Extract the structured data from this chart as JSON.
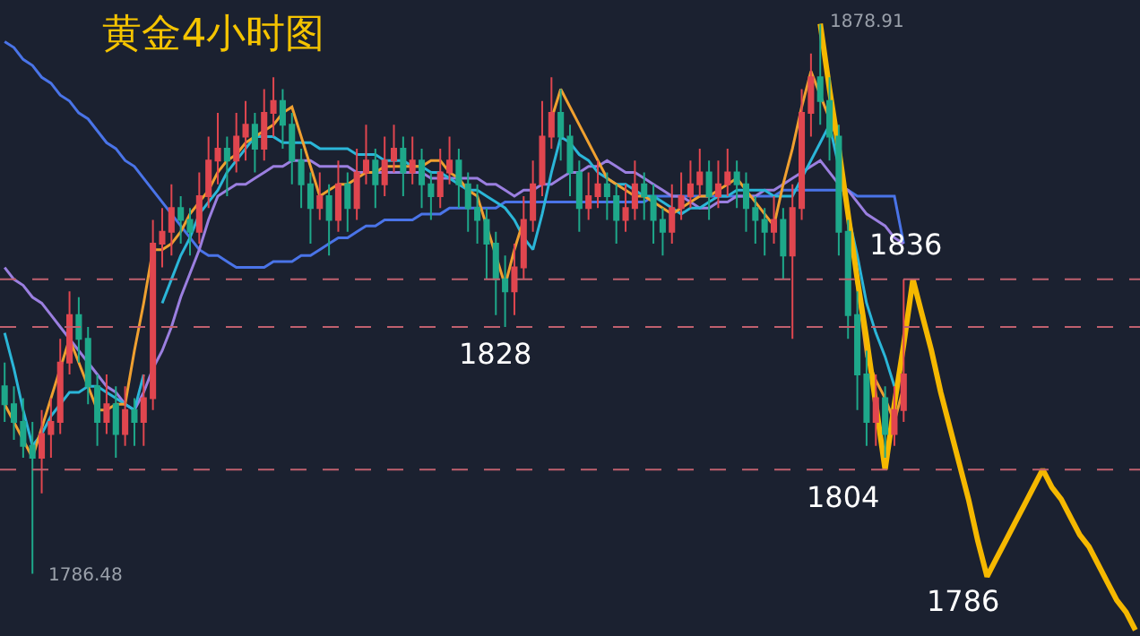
{
  "chart_data": {
    "type": "candlestick",
    "title": "黄金4小时图",
    "categories": [
      null,
      null,
      null,
      null,
      null,
      null,
      null,
      null,
      null,
      null,
      null,
      null,
      null,
      null,
      null,
      null,
      null,
      null,
      null,
      null,
      null,
      null,
      null,
      null,
      null,
      null,
      null,
      null,
      null,
      null,
      null,
      null,
      null,
      null,
      null,
      null,
      null,
      null,
      null,
      null,
      null,
      null,
      null,
      null,
      null,
      null,
      null,
      null,
      null,
      null,
      null,
      null,
      null,
      null,
      null,
      null,
      null,
      null,
      null,
      null,
      null,
      null,
      null,
      null,
      null,
      null,
      null,
      null,
      null,
      null,
      null,
      null,
      null,
      null,
      null,
      null,
      null,
      null,
      null,
      null,
      null,
      null,
      null,
      null,
      null,
      null,
      null,
      null,
      null,
      null,
      null,
      null,
      null,
      null,
      null,
      null,
      null,
      null,
      null,
      null,
      null,
      null,
      null,
      null,
      null,
      null,
      null,
      null,
      null,
      null,
      null,
      null,
      null,
      null,
      null,
      null,
      null,
      null,
      null,
      null,
      null,
      null,
      null
    ],
    "ohlc": [
      [
        1818,
        1822,
        1812,
        1815
      ],
      [
        1815,
        1818,
        1809,
        1812
      ],
      [
        1812,
        1816,
        1806,
        1808
      ],
      [
        1808,
        1812,
        1786.48,
        1806
      ],
      [
        1806,
        1814,
        1800,
        1810
      ],
      [
        1810,
        1816,
        1806,
        1812
      ],
      [
        1812,
        1826,
        1810,
        1822
      ],
      [
        1822,
        1834,
        1820,
        1830
      ],
      [
        1830,
        1833,
        1822,
        1826
      ],
      [
        1826,
        1828,
        1815,
        1818
      ],
      [
        1818,
        1820,
        1808,
        1812
      ],
      [
        1812,
        1820,
        1810,
        1815
      ],
      [
        1815,
        1818,
        1806,
        1810
      ],
      [
        1810,
        1818,
        1808,
        1814
      ],
      [
        1814,
        1816,
        1808,
        1812
      ],
      [
        1812,
        1820,
        1808,
        1816
      ],
      [
        1816,
        1846,
        1814,
        1842
      ],
      [
        1842,
        1848,
        1838,
        1844
      ],
      [
        1844,
        1852,
        1840,
        1848
      ],
      [
        1848,
        1850,
        1842,
        1846
      ],
      [
        1846,
        1848,
        1840,
        1844
      ],
      [
        1844,
        1854,
        1842,
        1850
      ],
      [
        1850,
        1860,
        1848,
        1856
      ],
      [
        1856,
        1864,
        1852,
        1858
      ],
      [
        1858,
        1860,
        1850,
        1856
      ],
      [
        1856,
        1864,
        1854,
        1860
      ],
      [
        1860,
        1866,
        1856,
        1862
      ],
      [
        1862,
        1864,
        1854,
        1858
      ],
      [
        1858,
        1868,
        1856,
        1864
      ],
      [
        1864,
        1870,
        1860,
        1866
      ],
      [
        1866,
        1868,
        1858,
        1862
      ],
      [
        1862,
        1864,
        1852,
        1856
      ],
      [
        1856,
        1858,
        1848,
        1852
      ],
      [
        1852,
        1854,
        1842,
        1848
      ],
      [
        1848,
        1854,
        1846,
        1850
      ],
      [
        1850,
        1852,
        1840,
        1846
      ],
      [
        1846,
        1856,
        1844,
        1852
      ],
      [
        1852,
        1854,
        1844,
        1848
      ],
      [
        1848,
        1858,
        1846,
        1854
      ],
      [
        1854,
        1862,
        1852,
        1856
      ],
      [
        1856,
        1858,
        1848,
        1852
      ],
      [
        1852,
        1860,
        1850,
        1856
      ],
      [
        1856,
        1862,
        1854,
        1858
      ],
      [
        1858,
        1860,
        1850,
        1854
      ],
      [
        1854,
        1860,
        1852,
        1856
      ],
      [
        1856,
        1858,
        1848,
        1852
      ],
      [
        1852,
        1854,
        1846,
        1850
      ],
      [
        1850,
        1858,
        1848,
        1854
      ],
      [
        1854,
        1860,
        1852,
        1856
      ],
      [
        1856,
        1858,
        1848,
        1852
      ],
      [
        1852,
        1854,
        1844,
        1848
      ],
      [
        1848,
        1852,
        1842,
        1846
      ],
      [
        1846,
        1848,
        1836,
        1842
      ],
      [
        1842,
        1844,
        1830,
        1836
      ],
      [
        1836,
        1840,
        1828,
        1834
      ],
      [
        1834,
        1842,
        1830,
        1838
      ],
      [
        1838,
        1850,
        1836,
        1846
      ],
      [
        1846,
        1856,
        1844,
        1852
      ],
      [
        1852,
        1866,
        1850,
        1860
      ],
      [
        1860,
        1870,
        1858,
        1864
      ],
      [
        1864,
        1868,
        1856,
        1860
      ],
      [
        1860,
        1862,
        1850,
        1854
      ],
      [
        1854,
        1856,
        1844,
        1848
      ],
      [
        1848,
        1854,
        1846,
        1850
      ],
      [
        1850,
        1856,
        1848,
        1852
      ],
      [
        1852,
        1854,
        1846,
        1850
      ],
      [
        1850,
        1852,
        1842,
        1846
      ],
      [
        1846,
        1852,
        1844,
        1848
      ],
      [
        1848,
        1856,
        1846,
        1852
      ],
      [
        1852,
        1854,
        1846,
        1850
      ],
      [
        1850,
        1852,
        1842,
        1846
      ],
      [
        1846,
        1848,
        1840,
        1844
      ],
      [
        1844,
        1852,
        1842,
        1848
      ],
      [
        1848,
        1854,
        1846,
        1850
      ],
      [
        1850,
        1856,
        1848,
        1852
      ],
      [
        1852,
        1858,
        1850,
        1854
      ],
      [
        1854,
        1856,
        1846,
        1850
      ],
      [
        1850,
        1856,
        1848,
        1852
      ],
      [
        1852,
        1858,
        1850,
        1854
      ],
      [
        1854,
        1856,
        1848,
        1852
      ],
      [
        1852,
        1854,
        1844,
        1848
      ],
      [
        1848,
        1850,
        1842,
        1846
      ],
      [
        1846,
        1848,
        1840,
        1844
      ],
      [
        1844,
        1850,
        1842,
        1846
      ],
      [
        1846,
        1848,
        1836,
        1840
      ],
      [
        1840,
        1852,
        1826,
        1848
      ],
      [
        1848,
        1868,
        1846,
        1864
      ],
      [
        1864,
        1874,
        1860,
        1870
      ],
      [
        1870,
        1878.91,
        1862,
        1866
      ],
      [
        1866,
        1870,
        1856,
        1860
      ],
      [
        1860,
        1862,
        1840,
        1844
      ],
      [
        1844,
        1846,
        1826,
        1830
      ],
      [
        1830,
        1834,
        1814,
        1820
      ],
      [
        1820,
        1824,
        1808,
        1812
      ],
      [
        1812,
        1820,
        1808,
        1816
      ],
      [
        1816,
        1818,
        1806,
        1810
      ],
      [
        1810,
        1818,
        1808,
        1814
      ],
      [
        1814,
        1836,
        1812,
        1820
      ],
      null,
      null,
      null,
      null,
      null,
      null,
      null,
      null,
      null,
      null,
      null,
      null,
      null,
      null,
      null,
      null,
      null,
      null,
      null,
      null,
      null,
      null,
      null,
      null,
      null
    ],
    "series": [
      {
        "type": "line",
        "color": "#4a74e8",
        "values": [
          1876,
          1875,
          1873,
          1872,
          1870,
          1869,
          1867,
          1866,
          1864,
          1863,
          1861,
          1859,
          1858,
          1856,
          1855,
          1853,
          1851,
          1849,
          1847,
          1845,
          1843,
          1841,
          1840,
          1840,
          1839,
          1838,
          1838,
          1838,
          1838,
          1839,
          1839,
          1839,
          1840,
          1840,
          1841,
          1842,
          1843,
          1843,
          1844,
          1845,
          1845,
          1846,
          1846,
          1846,
          1846,
          1847,
          1847,
          1847,
          1848,
          1848,
          1848,
          1848,
          1848,
          1848,
          1849,
          1849,
          1849,
          1849,
          1849,
          1849,
          1849,
          1849,
          1849,
          1849,
          1849,
          1849,
          1849,
          1849,
          1849,
          1849,
          1850,
          1850,
          1850,
          1850,
          1850,
          1850,
          1850,
          1850,
          1850,
          1850,
          1850,
          1850,
          1850,
          1850,
          1851,
          1851,
          1851,
          1851,
          1851,
          1851,
          1851,
          1851,
          1850,
          1850,
          1850,
          1850,
          1850,
          1842,
          null,
          null,
          null,
          null,
          null,
          null,
          null,
          null,
          null,
          null,
          null,
          null,
          null,
          null,
          null,
          null,
          null,
          null,
          null,
          null,
          null,
          null,
          null,
          null,
          null
        ]
      },
      {
        "type": "line",
        "color": "#9b7fe0",
        "values": [
          1838,
          1836,
          1835,
          1833,
          1832,
          1830,
          1828,
          1826,
          1824,
          1822,
          1820,
          1818,
          1817,
          1815,
          1814,
          1817,
          1821,
          1824,
          1828,
          1833,
          1837,
          1841,
          1846,
          1850,
          1851,
          1852,
          1852,
          1853,
          1854,
          1855,
          1855,
          1856,
          1856,
          1856,
          1855,
          1855,
          1855,
          1855,
          1854,
          1854,
          1854,
          1854,
          1854,
          1854,
          1854,
          1854,
          1853,
          1853,
          1853,
          1853,
          1853,
          1853,
          1852,
          1852,
          1851,
          1850,
          1851,
          1851,
          1852,
          1852,
          1853,
          1854,
          1854,
          1855,
          1855,
          1856,
          1855,
          1854,
          1854,
          1853,
          1852,
          1851,
          1850,
          1850,
          1849,
          1848,
          1848,
          1849,
          1849,
          1850,
          1850,
          1850,
          1851,
          1851,
          1852,
          1853,
          1854,
          1855,
          1856,
          1854,
          1852,
          1851,
          1849,
          1847,
          1846,
          1845,
          1843,
          1842,
          null,
          null,
          null,
          null,
          null,
          null,
          null,
          null,
          null,
          null,
          null,
          null,
          null,
          null,
          null,
          null,
          null,
          null,
          null,
          null,
          null,
          null,
          null,
          null,
          null
        ]
      },
      {
        "type": "line",
        "color": "#2bb6d8",
        "values": [
          1827,
          1821,
          1814,
          1808,
          1810,
          1813,
          1815,
          1817,
          1817,
          1818,
          1818,
          1817,
          1816,
          1815,
          1814,
          1820,
          null,
          1832,
          1836,
          1840,
          1843,
          1847,
          1849,
          1851,
          1854,
          1856,
          1858,
          1860,
          1860,
          1860,
          1859,
          1859,
          1859,
          1859,
          1858,
          1858,
          1858,
          1858,
          1857,
          1857,
          1857,
          1856,
          1856,
          1856,
          1855,
          1855,
          1854,
          1854,
          1853,
          1852,
          1851,
          1851,
          1850,
          1849,
          1848,
          1846,
          1843,
          1841,
          1847,
          1854,
          1860,
          1859,
          1857,
          1856,
          1854,
          1853,
          1852,
          1852,
          1851,
          1850,
          1850,
          1849,
          1848,
          1847,
          1848,
          1848,
          1849,
          1850,
          1850,
          1851,
          1851,
          1851,
          1851,
          1850,
          1850,
          1850,
          1853,
          1856,
          1859,
          1862,
          1855,
          1847,
          1840,
          1832,
          1827,
          1823,
          1818,
          null,
          null,
          null,
          null,
          null,
          null,
          null,
          null,
          null,
          null,
          null,
          null,
          null,
          null,
          null,
          null,
          null,
          null,
          null,
          null,
          null,
          null,
          null,
          null,
          null,
          null
        ]
      },
      {
        "type": "line",
        "color": "#f0a030",
        "values": [
          1815,
          1812,
          1809,
          1806,
          1811,
          1816,
          1821,
          1826,
          1822,
          1818,
          1814,
          1814,
          1815,
          1815,
          1824,
          1832,
          1841,
          1841,
          1842,
          1844,
          1847,
          1849,
          1851,
          1854,
          1856,
          1857,
          1859,
          1860,
          1861,
          1862,
          1864,
          1865,
          1860,
          1855,
          1850,
          1851,
          1852,
          1852,
          1853,
          1854,
          1854,
          1855,
          1855,
          1855,
          1855,
          1855,
          1856,
          1856,
          1854,
          1853,
          1851,
          1850,
          1845,
          1840,
          1835,
          1841,
          1846,
          null,
          null,
          1863,
          1868,
          1865,
          1862,
          1859,
          1856,
          1853,
          1852,
          1851,
          1850,
          1850,
          1849,
          1848,
          1847,
          1848,
          1849,
          1850,
          1850,
          1851,
          1852,
          1853,
          1851,
          1849,
          1847,
          1845,
          1852,
          1858,
          1865,
          1871,
          1867,
          1863,
          1859,
          1847,
          1835,
          1823,
          1819,
          1816,
          1812,
          1818,
          null,
          null,
          null,
          null,
          null,
          null,
          null,
          null,
          null,
          null,
          null,
          null,
          null,
          null,
          null,
          null,
          null,
          null,
          null,
          null,
          null,
          null,
          null,
          null,
          null
        ]
      },
      {
        "type": "line",
        "color": "#f5b800",
        "values": [
          null,
          null,
          null,
          null,
          null,
          null,
          null,
          null,
          null,
          null,
          null,
          null,
          null,
          null,
          null,
          null,
          null,
          null,
          null,
          null,
          null,
          null,
          null,
          null,
          null,
          null,
          null,
          null,
          null,
          null,
          null,
          null,
          null,
          null,
          null,
          null,
          null,
          null,
          null,
          null,
          null,
          null,
          null,
          null,
          null,
          null,
          null,
          null,
          null,
          null,
          null,
          null,
          null,
          null,
          null,
          null,
          null,
          null,
          null,
          null,
          null,
          null,
          null,
          null,
          null,
          null,
          null,
          null,
          null,
          null,
          null,
          null,
          null,
          null,
          null,
          null,
          null,
          null,
          null,
          null,
          null,
          null,
          null,
          null,
          null,
          null,
          null,
          null,
          1879,
          1868,
          1858,
          1847,
          1836,
          1826,
          1815,
          1804,
          1815,
          1825,
          1836,
          1830,
          1824,
          1817,
          1811,
          1805,
          1799,
          1792,
          1786,
          1789,
          1792,
          1795,
          1798,
          1801,
          1804,
          1801,
          1799,
          1796,
          1793,
          1791,
          1788,
          1785,
          1782,
          1780,
          1777
        ]
      }
    ],
    "ylim": [
      1776,
      1883
    ],
    "ref_lines": [
      {
        "axis": "y",
        "value": 1836,
        "color": "#c0606e",
        "line_style": "dashed"
      },
      {
        "axis": "y",
        "value": 1828,
        "color": "#c0606e",
        "line_style": "dashed"
      },
      {
        "axis": "y",
        "value": 1804,
        "color": "#c0606e",
        "line_style": "dashed"
      }
    ],
    "annotations": [
      "1878.91",
      "1786.48",
      {
        "text": "1836",
        "y": 1836
      },
      {
        "text": "1828",
        "y": 1828
      },
      {
        "text": "1804",
        "y": 1804
      },
      "1786"
    ],
    "tick_labels": false,
    "grid": false,
    "marker": "none",
    "line_style": "solid"
  }
}
